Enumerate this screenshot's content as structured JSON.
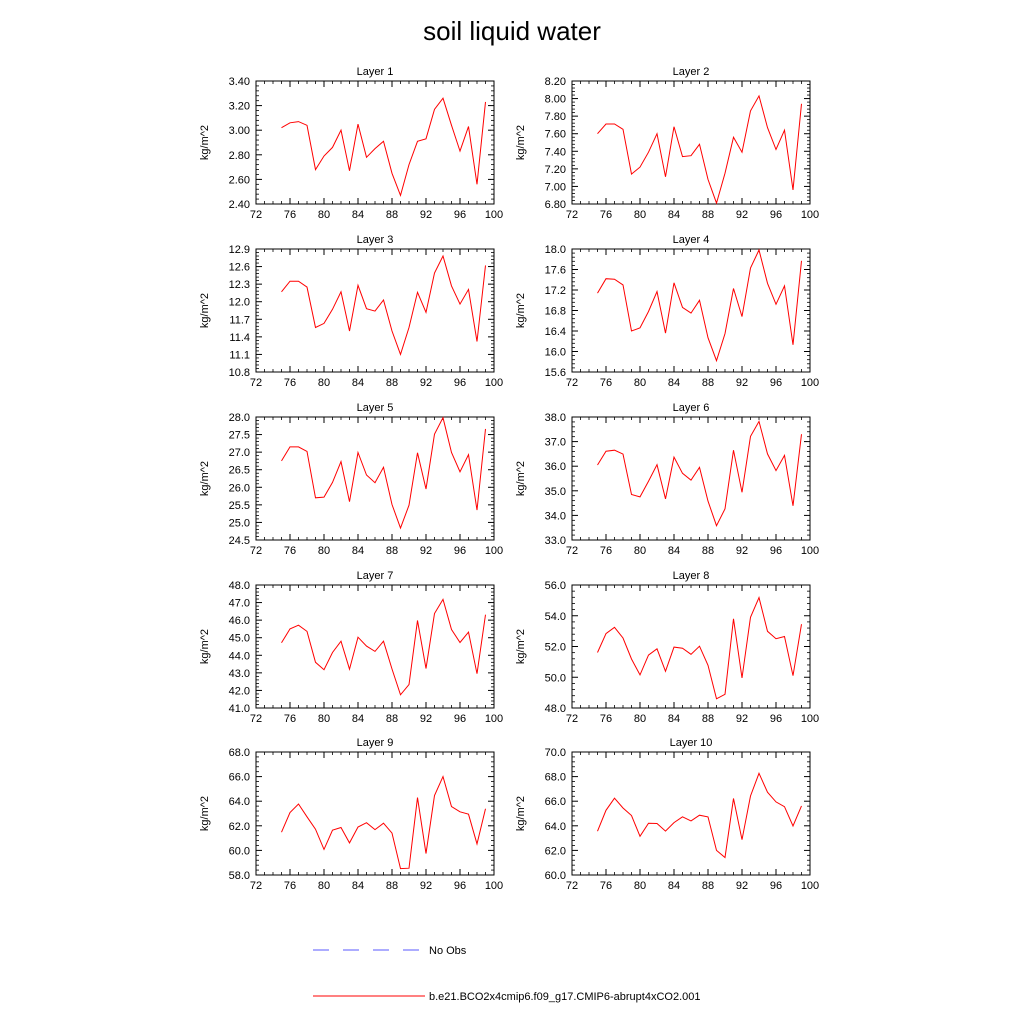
{
  "chart_data": {
    "type": "line",
    "title": "soil liquid water",
    "x_ticks": [
      "72",
      "76",
      "80",
      "84",
      "88",
      "92",
      "96",
      "100"
    ],
    "xlim": [
      72,
      100
    ],
    "legend": [
      {
        "label": "No Obs",
        "color": "#5a5aff",
        "dash": true
      },
      {
        "label": "b.e21.BCO2x4cmip6.f09_g17.CMIP6-abrupt4xCO2.001",
        "color": "#ff0000",
        "dash": false
      }
    ],
    "line_color": "#ff0000",
    "x": [
      75,
      76,
      77,
      78,
      79,
      80,
      81,
      82,
      83,
      84,
      85,
      86,
      87,
      88,
      89,
      90,
      91,
      92,
      93,
      94,
      95,
      96,
      97,
      98,
      99
    ],
    "panels": [
      {
        "title": "Layer 1",
        "ylabel": "kg/m^2",
        "ylim": [
          2.4,
          3.4
        ],
        "y_ticks": [
          "2.40",
          "2.60",
          "2.80",
          "3.00",
          "3.20",
          "3.40"
        ],
        "values": [
          3.02,
          3.06,
          3.07,
          3.04,
          2.68,
          2.79,
          2.86,
          3.0,
          2.67,
          3.05,
          2.78,
          2.85,
          2.91,
          2.65,
          2.47,
          2.72,
          2.91,
          2.93,
          3.17,
          3.26,
          3.04,
          2.83,
          3.03,
          2.56,
          3.23
        ]
      },
      {
        "title": "Layer 2",
        "ylabel": "kg/m^2",
        "ylim": [
          6.8,
          8.2
        ],
        "y_ticks": [
          "6.80",
          "7.00",
          "7.20",
          "7.40",
          "7.60",
          "7.80",
          "8.00",
          "8.20"
        ],
        "values": [
          7.6,
          7.71,
          7.71,
          7.65,
          7.14,
          7.22,
          7.39,
          7.6,
          7.11,
          7.68,
          7.34,
          7.35,
          7.48,
          7.08,
          6.81,
          7.15,
          7.56,
          7.39,
          7.86,
          8.03,
          7.67,
          7.42,
          7.64,
          6.96,
          7.94
        ]
      },
      {
        "title": "Layer 3",
        "ylabel": "kg/m^2",
        "ylim": [
          10.8,
          12.9
        ],
        "y_ticks": [
          "10.8",
          "11.1",
          "11.4",
          "11.7",
          "12.0",
          "12.3",
          "12.6",
          "12.9"
        ],
        "values": [
          12.17,
          12.35,
          12.35,
          12.25,
          11.56,
          11.63,
          11.87,
          12.17,
          11.5,
          12.28,
          11.88,
          11.84,
          12.03,
          11.5,
          11.1,
          11.56,
          12.16,
          11.82,
          12.49,
          12.78,
          12.27,
          11.96,
          12.21,
          11.32,
          12.62
        ]
      },
      {
        "title": "Layer 4",
        "ylabel": "kg/m^2",
        "ylim": [
          15.6,
          18.0
        ],
        "y_ticks": [
          "15.6",
          "16.0",
          "16.4",
          "16.8",
          "17.2",
          "17.6",
          "18.0"
        ],
        "values": [
          17.14,
          17.42,
          17.41,
          17.3,
          16.4,
          16.46,
          16.78,
          17.17,
          16.36,
          17.34,
          16.86,
          16.75,
          17.0,
          16.27,
          15.82,
          16.35,
          17.23,
          16.68,
          17.63,
          17.98,
          17.33,
          16.92,
          17.28,
          16.13,
          17.77
        ]
      },
      {
        "title": "Layer 5",
        "ylabel": "kg/m^2",
        "ylim": [
          24.5,
          28.0
        ],
        "y_ticks": [
          "24.5",
          "25.0",
          "25.5",
          "26.0",
          "26.5",
          "27.0",
          "27.5",
          "28.0"
        ],
        "values": [
          26.75,
          27.15,
          27.15,
          27.02,
          25.7,
          25.72,
          26.14,
          26.73,
          25.59,
          26.99,
          26.35,
          26.13,
          26.57,
          25.51,
          24.84,
          25.49,
          26.98,
          25.95,
          27.51,
          27.98,
          26.99,
          26.44,
          26.93,
          25.35,
          27.66
        ]
      },
      {
        "title": "Layer 6",
        "ylabel": "kg/m^2",
        "ylim": [
          33.0,
          38.0
        ],
        "y_ticks": [
          "33.0",
          "34.0",
          "35.0",
          "36.0",
          "37.0",
          "38.0"
        ],
        "values": [
          36.05,
          36.61,
          36.65,
          36.49,
          34.85,
          34.75,
          35.39,
          36.06,
          34.67,
          36.37,
          35.71,
          35.43,
          35.95,
          34.58,
          33.58,
          34.27,
          36.65,
          34.94,
          37.21,
          37.82,
          36.5,
          35.82,
          36.44,
          34.39,
          37.3
        ]
      },
      {
        "title": "Layer 7",
        "ylabel": "kg/m^2",
        "ylim": [
          41.0,
          48.0
        ],
        "y_ticks": [
          "41.0",
          "42.0",
          "43.0",
          "44.0",
          "45.0",
          "46.0",
          "47.0",
          "48.0"
        ],
        "values": [
          44.71,
          45.5,
          45.71,
          45.36,
          43.6,
          43.18,
          44.16,
          44.8,
          43.21,
          45.03,
          44.52,
          44.22,
          44.8,
          43.22,
          41.75,
          42.33,
          45.98,
          43.25,
          46.38,
          47.18,
          45.47,
          44.73,
          45.32,
          42.95,
          46.31
        ]
      },
      {
        "title": "Layer 8",
        "ylabel": "kg/m^2",
        "ylim": [
          48.0,
          56.0
        ],
        "y_ticks": [
          "48.0",
          "50.0",
          "52.0",
          "54.0",
          "56.0"
        ],
        "values": [
          51.61,
          52.84,
          53.25,
          52.55,
          51.19,
          50.15,
          51.44,
          51.85,
          50.39,
          51.96,
          51.89,
          51.49,
          52.02,
          50.78,
          48.6,
          48.89,
          53.8,
          49.96,
          53.9,
          55.18,
          52.99,
          52.51,
          52.65,
          50.1,
          53.45
        ]
      },
      {
        "title": "Layer 9",
        "ylabel": "kg/m^2",
        "ylim": [
          58.0,
          68.0
        ],
        "y_ticks": [
          "58.0",
          "60.0",
          "62.0",
          "64.0",
          "66.0",
          "68.0"
        ],
        "values": [
          61.48,
          63.08,
          63.77,
          62.73,
          61.72,
          60.08,
          61.64,
          61.86,
          60.61,
          61.9,
          62.25,
          61.69,
          62.21,
          61.41,
          58.52,
          58.55,
          64.29,
          59.75,
          64.46,
          66.0,
          63.56,
          63.14,
          62.94,
          60.53,
          63.38
        ]
      },
      {
        "title": "Layer 10",
        "ylabel": "kg/m^2",
        "ylim": [
          60.0,
          70.0
        ],
        "y_ticks": [
          "60.0",
          "62.0",
          "64.0",
          "66.0",
          "68.0",
          "70.0"
        ],
        "values": [
          63.56,
          65.26,
          66.24,
          65.45,
          64.84,
          63.15,
          64.21,
          64.19,
          63.57,
          64.26,
          64.73,
          64.4,
          64.86,
          64.72,
          62.0,
          61.42,
          66.22,
          62.87,
          66.42,
          68.27,
          66.73,
          65.94,
          65.55,
          63.98,
          65.62
        ]
      }
    ]
  }
}
